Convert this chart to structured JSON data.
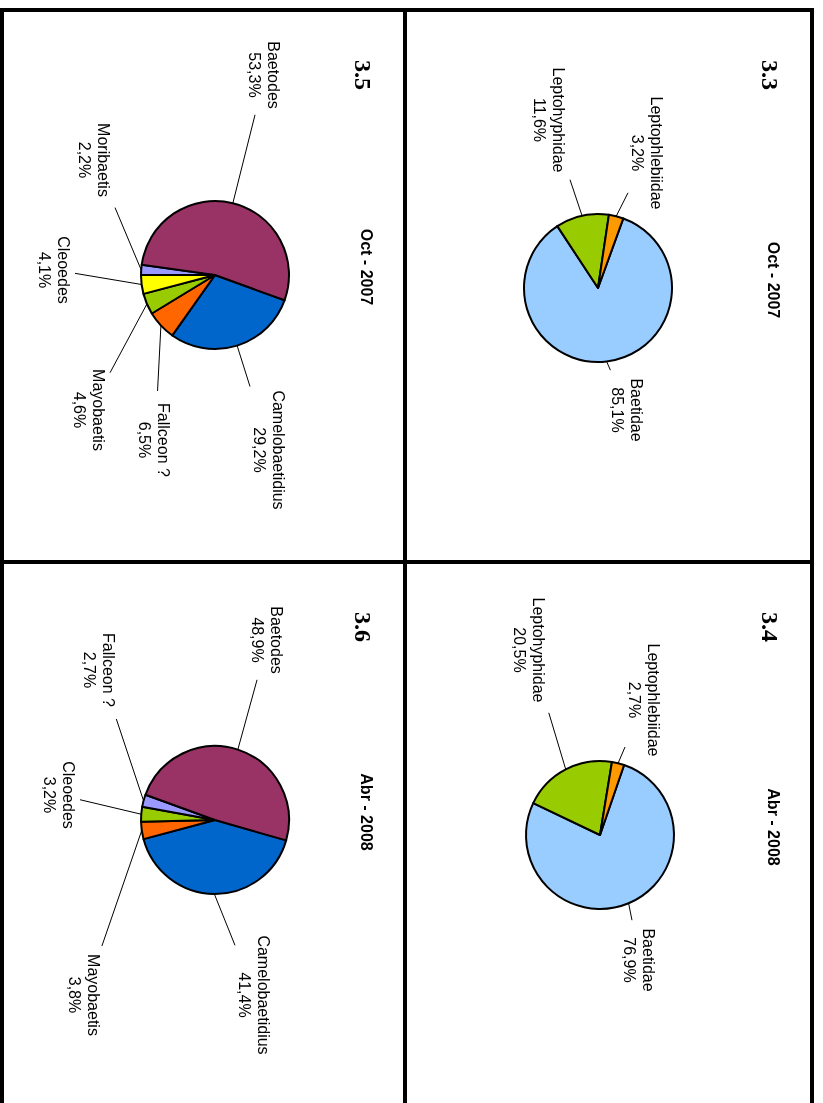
{
  "chart_data": [
    {
      "type": "pie",
      "title": "3.3",
      "subtitle": "Oct - 2007",
      "categories": [
        "Baetidae",
        "Leptohyphidae",
        "Leptophlebiidae"
      ],
      "values": [
        85.1,
        11.6,
        3.2
      ],
      "value_labels": [
        "85,1%",
        "11,6%",
        "3,2%"
      ],
      "colors": [
        "#99ccff",
        "#99cc00",
        "#ff9900"
      ]
    },
    {
      "type": "pie",
      "title": "3.4",
      "subtitle": "Abr - 2008",
      "categories": [
        "Baetidae",
        "Leptohyphidae",
        "Leptophlebiidae"
      ],
      "values": [
        76.9,
        20.5,
        2.7
      ],
      "value_labels": [
        "76,9%",
        "20,5%",
        "2,7%"
      ],
      "colors": [
        "#99ccff",
        "#99cc00",
        "#ff9900"
      ]
    },
    {
      "type": "pie",
      "title": "3.5",
      "subtitle": "Oct - 2007",
      "categories": [
        "Camelobaetidius",
        "Fallceon ?",
        "Mayobaetis",
        "Cleoedes",
        "Moribaetis",
        "Baetodes"
      ],
      "values": [
        29.2,
        6.5,
        4.6,
        4.1,
        2.2,
        53.3
      ],
      "value_labels": [
        "29,2%",
        "6,5%",
        "4,6%",
        "4,1%",
        "2,2%",
        "53,3%"
      ],
      "colors": [
        "#0066cc",
        "#ff6600",
        "#99cc00",
        "#ffff00",
        "#9999ff",
        "#993366"
      ]
    },
    {
      "type": "pie",
      "title": "3.6",
      "subtitle": "Abr - 2008",
      "categories": [
        "Camelobaetidius",
        "Mayobaetis",
        "Cleoedes",
        "Fallceon ?",
        "Baetodes"
      ],
      "values": [
        41.4,
        3.8,
        3.2,
        2.7,
        48.9
      ],
      "value_labels": [
        "41,4%",
        "3,8%",
        "3,2%",
        "2,7%",
        "48,9%"
      ],
      "colors": [
        "#0066cc",
        "#ff6600",
        "#99cc00",
        "#9999ff",
        "#993366"
      ]
    }
  ]
}
